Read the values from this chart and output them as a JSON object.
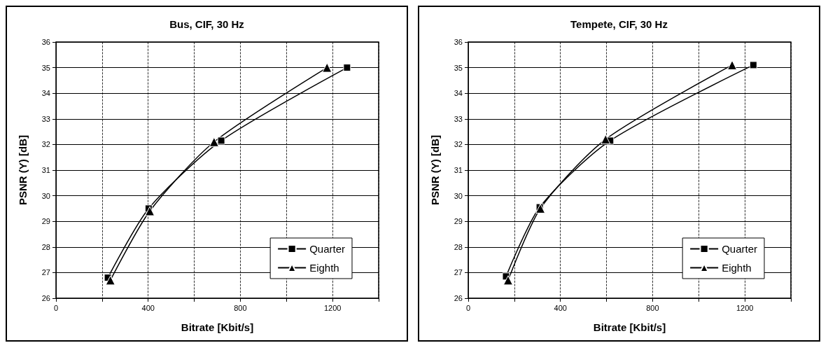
{
  "chart_data": [
    {
      "type": "line",
      "title": "Bus, CIF, 30 Hz",
      "xlabel": "Bitrate [Kbit/s]",
      "ylabel": "PSNR (Y) [dB]",
      "xlim": [
        0,
        1400
      ],
      "xticks": [
        0,
        {
          "value": 200,
          "label": null
        },
        400,
        {
          "value": 600,
          "label": null
        },
        800,
        {
          "value": 1000,
          "label": null
        },
        1200
      ],
      "ylim": [
        26,
        36
      ],
      "yticks": [
        26,
        27,
        28,
        29,
        30,
        31,
        32,
        33,
        34,
        35,
        36
      ],
      "grid": true,
      "legend": "bottom right",
      "line_style": "solid",
      "series": [
        {
          "name": "Quarter",
          "color": "#000000",
          "marker": "square",
          "x": [
            225,
            402,
            717,
            1263
          ],
          "values": [
            26.8,
            29.5,
            32.15,
            35.0
          ]
        },
        {
          "name": "Eighth",
          "color": "#000000",
          "marker": "triangle",
          "x": [
            236,
            407,
            686,
            1176
          ],
          "values": [
            26.7,
            29.4,
            32.1,
            35.0
          ]
        }
      ]
    },
    {
      "type": "line",
      "title": "Tempete, CIF, 30 Hz",
      "xlabel": "Bitrate [Kbit/s]",
      "ylabel": "PSNR (Y) [dB]",
      "xlim": [
        0,
        1400
      ],
      "xticks": [
        0,
        {
          "value": 200,
          "label": null
        },
        400,
        {
          "value": 600,
          "label": null
        },
        800,
        {
          "value": 1000,
          "label": null
        },
        1200
      ],
      "ylim": [
        26,
        36
      ],
      "yticks": [
        26,
        27,
        28,
        29,
        30,
        31,
        32,
        33,
        34,
        35,
        36
      ],
      "grid": true,
      "legend": "bottom right",
      "line_style": "solid",
      "series": [
        {
          "name": "Quarter",
          "color": "#000000",
          "marker": "square",
          "x": [
            164,
            310,
            616,
            1237
          ],
          "values": [
            26.85,
            29.55,
            32.15,
            35.1
          ]
        },
        {
          "name": "Eighth",
          "color": "#000000",
          "marker": "triangle",
          "x": [
            173,
            313,
            596,
            1145
          ],
          "values": [
            26.7,
            29.5,
            32.2,
            35.1
          ]
        }
      ]
    }
  ]
}
